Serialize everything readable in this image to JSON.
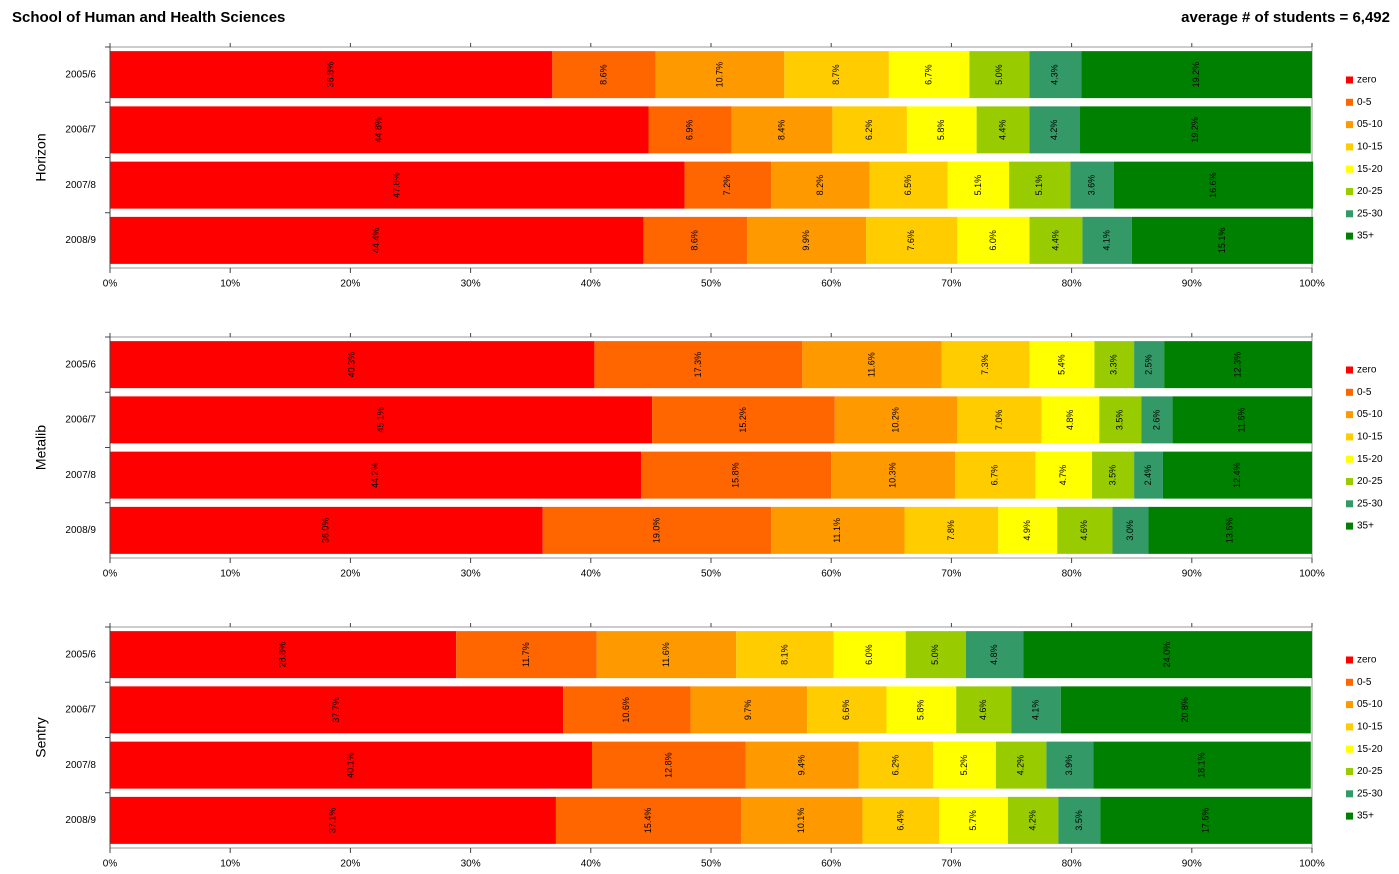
{
  "title": "School of Human and Health Sciences",
  "subtitle": "average # of students = 6,492",
  "chart_data": [
    {
      "type": "bar",
      "orientation": "horizontal",
      "stacked": true,
      "y_label": "Horizon",
      "categories": [
        "2005/6",
        "2006/7",
        "2007/8",
        "2008/9"
      ],
      "xlim": [
        0,
        100
      ],
      "xticks": [
        {
          "value": 0,
          "label": "0%"
        },
        {
          "value": 10,
          "label": "10%"
        },
        {
          "value": 20,
          "label": "20%"
        },
        {
          "value": 30,
          "label": "30%"
        },
        {
          "value": 40,
          "label": "40%"
        },
        {
          "value": 50,
          "label": "50%"
        },
        {
          "value": 60,
          "label": "60%"
        },
        {
          "value": 70,
          "label": "70%"
        },
        {
          "value": 80,
          "label": "80%"
        },
        {
          "value": 90,
          "label": "90%"
        },
        {
          "value": 100,
          "label": "100%"
        }
      ],
      "legend": "right",
      "series": [
        {
          "name": "zero",
          "color": "#ff0000",
          "values": [
            36.8,
            44.8,
            47.8,
            44.4
          ],
          "value_labels": [
            "36.8%",
            "44.8%",
            "47.8%",
            "44.4%"
          ]
        },
        {
          "name": "0-5",
          "color": "#ff6600",
          "values": [
            8.6,
            6.9,
            7.2,
            8.6
          ],
          "value_labels": [
            "8.6%",
            "6.9%",
            "7.2%",
            "8.6%"
          ]
        },
        {
          "name": "05-10",
          "color": "#ff9900",
          "values": [
            10.7,
            8.4,
            8.2,
            9.9
          ],
          "value_labels": [
            "10.7%",
            "8.4%",
            "8.2%",
            "9.9%"
          ]
        },
        {
          "name": "10-15",
          "color": "#ffcc00",
          "values": [
            8.7,
            6.2,
            6.5,
            7.6
          ],
          "value_labels": [
            "8.7%",
            "6.2%",
            "6.5%",
            "7.6%"
          ]
        },
        {
          "name": "15-20",
          "color": "#ffff00",
          "values": [
            6.7,
            5.8,
            5.1,
            6.0
          ],
          "value_labels": [
            "6.7%",
            "5.8%",
            "5.1%",
            "6.0%"
          ]
        },
        {
          "name": "20-25",
          "color": "#99cc00",
          "values": [
            5.0,
            4.4,
            5.1,
            4.4
          ],
          "value_labels": [
            "5.0%",
            "4.4%",
            "5.1%",
            "4.4%"
          ]
        },
        {
          "name": "25-30",
          "color": "#339966",
          "values": [
            4.3,
            4.2,
            3.6,
            4.1
          ],
          "value_labels": [
            "4.3%",
            "4.2%",
            "3.6%",
            "4.1%"
          ]
        },
        {
          "name": "35+",
          "color": "#008000",
          "values": [
            19.2,
            19.2,
            16.6,
            15.1
          ],
          "value_labels": [
            "19.2%",
            "19.2%",
            "16.6%",
            "15.1%"
          ]
        }
      ]
    },
    {
      "type": "bar",
      "orientation": "horizontal",
      "stacked": true,
      "y_label": "Metalib",
      "categories": [
        "2005/6",
        "2006/7",
        "2007/8",
        "2008/9"
      ],
      "xlim": [
        0,
        100
      ],
      "xticks": [
        {
          "value": 0,
          "label": "0%"
        },
        {
          "value": 10,
          "label": "10%"
        },
        {
          "value": 20,
          "label": "20%"
        },
        {
          "value": 30,
          "label": "30%"
        },
        {
          "value": 40,
          "label": "40%"
        },
        {
          "value": 50,
          "label": "50%"
        },
        {
          "value": 60,
          "label": "60%"
        },
        {
          "value": 70,
          "label": "70%"
        },
        {
          "value": 80,
          "label": "80%"
        },
        {
          "value": 90,
          "label": "90%"
        },
        {
          "value": 100,
          "label": "100%"
        }
      ],
      "legend": "right",
      "series": [
        {
          "name": "zero",
          "color": "#ff0000",
          "values": [
            40.3,
            45.1,
            44.2,
            36.0
          ],
          "value_labels": [
            "40.3%",
            "45.1%",
            "44.2%",
            "36.0%"
          ]
        },
        {
          "name": "0-5",
          "color": "#ff6600",
          "values": [
            17.3,
            15.2,
            15.8,
            19.0
          ],
          "value_labels": [
            "17.3%",
            "15.2%",
            "15.8%",
            "19.0%"
          ]
        },
        {
          "name": "05-10",
          "color": "#ff9900",
          "values": [
            11.6,
            10.2,
            10.3,
            11.1
          ],
          "value_labels": [
            "11.6%",
            "10.2%",
            "10.3%",
            "11.1%"
          ]
        },
        {
          "name": "10-15",
          "color": "#ffcc00",
          "values": [
            7.3,
            7.0,
            6.7,
            7.8
          ],
          "value_labels": [
            "7.3%",
            "7.0%",
            "6.7%",
            "7.8%"
          ]
        },
        {
          "name": "15-20",
          "color": "#ffff00",
          "values": [
            5.4,
            4.8,
            4.7,
            4.9
          ],
          "value_labels": [
            "5.4%",
            "4.8%",
            "4.7%",
            "4.9%"
          ]
        },
        {
          "name": "20-25",
          "color": "#99cc00",
          "values": [
            3.3,
            3.5,
            3.5,
            4.6
          ],
          "value_labels": [
            "3.3%",
            "3.5%",
            "3.5%",
            "4.6%"
          ]
        },
        {
          "name": "25-30",
          "color": "#339966",
          "values": [
            2.5,
            2.6,
            2.4,
            3.0
          ],
          "value_labels": [
            "2.5%",
            "2.6%",
            "2.4%",
            "3.0%"
          ]
        },
        {
          "name": "35+",
          "color": "#008000",
          "values": [
            12.3,
            11.6,
            12.4,
            13.6
          ],
          "value_labels": [
            "12.3%",
            "11.6%",
            "12.4%",
            "13.6%"
          ]
        }
      ]
    },
    {
      "type": "bar",
      "orientation": "horizontal",
      "stacked": true,
      "y_label": "Sentry",
      "categories": [
        "2005/6",
        "2006/7",
        "2007/8",
        "2008/9"
      ],
      "xlim": [
        0,
        100
      ],
      "xticks": [
        {
          "value": 0,
          "label": "0%"
        },
        {
          "value": 10,
          "label": "10%"
        },
        {
          "value": 20,
          "label": "20%"
        },
        {
          "value": 30,
          "label": "30%"
        },
        {
          "value": 40,
          "label": "40%"
        },
        {
          "value": 50,
          "label": "50%"
        },
        {
          "value": 60,
          "label": "60%"
        },
        {
          "value": 70,
          "label": "70%"
        },
        {
          "value": 80,
          "label": "80%"
        },
        {
          "value": 90,
          "label": "90%"
        },
        {
          "value": 100,
          "label": "100%"
        }
      ],
      "legend": "right",
      "series": [
        {
          "name": "zero",
          "color": "#ff0000",
          "values": [
            28.8,
            37.7,
            40.1,
            37.1
          ],
          "value_labels": [
            "28.8%",
            "37.7%",
            "40.1%",
            "37.1%"
          ]
        },
        {
          "name": "0-5",
          "color": "#ff6600",
          "values": [
            11.7,
            10.6,
            12.8,
            15.4
          ],
          "value_labels": [
            "11.7%",
            "10.6%",
            "12.8%",
            "15.4%"
          ]
        },
        {
          "name": "05-10",
          "color": "#ff9900",
          "values": [
            11.6,
            9.7,
            9.4,
            10.1
          ],
          "value_labels": [
            "11.6%",
            "9.7%",
            "9.4%",
            "10.1%"
          ]
        },
        {
          "name": "10-15",
          "color": "#ffcc00",
          "values": [
            8.1,
            6.6,
            6.2,
            6.4
          ],
          "value_labels": [
            "8.1%",
            "6.6%",
            "6.2%",
            "6.4%"
          ]
        },
        {
          "name": "15-20",
          "color": "#ffff00",
          "values": [
            6.0,
            5.8,
            5.2,
            5.7
          ],
          "value_labels": [
            "6.0%",
            "5.8%",
            "5.2%",
            "5.7%"
          ]
        },
        {
          "name": "20-25",
          "color": "#99cc00",
          "values": [
            5.0,
            4.6,
            4.2,
            4.2
          ],
          "value_labels": [
            "5.0%",
            "4.6%",
            "4.2%",
            "4.2%"
          ]
        },
        {
          "name": "25-30",
          "color": "#339966",
          "values": [
            4.8,
            4.1,
            3.9,
            3.5
          ],
          "value_labels": [
            "4.8%",
            "4.1%",
            "3.9%",
            "3.5%"
          ]
        },
        {
          "name": "35+",
          "color": "#008000",
          "values": [
            24.0,
            20.8,
            18.1,
            17.6
          ],
          "value_labels": [
            "24.0%",
            "20.8%",
            "18.1%",
            "17.6%"
          ]
        }
      ]
    }
  ]
}
